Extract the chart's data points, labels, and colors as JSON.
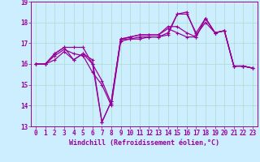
{
  "xlabel": "Windchill (Refroidissement éolien,°C)",
  "background_color": "#cceeff",
  "line_color": "#990099",
  "grid_color": "#aaddcc",
  "xlim": [
    -0.5,
    23.5
  ],
  "ylim": [
    13,
    19
  ],
  "yticks": [
    13,
    14,
    15,
    16,
    17,
    18,
    19
  ],
  "xticks": [
    0,
    1,
    2,
    3,
    4,
    5,
    6,
    7,
    8,
    9,
    10,
    11,
    12,
    13,
    14,
    15,
    16,
    17,
    18,
    19,
    20,
    21,
    22,
    23
  ],
  "series": [
    [
      16.0,
      16.0,
      16.5,
      16.8,
      16.2,
      16.5,
      16.2,
      13.2,
      14.2,
      17.2,
      17.3,
      17.4,
      17.4,
      17.4,
      17.8,
      17.8,
      17.5,
      17.3,
      18.2,
      17.5,
      17.6,
      15.9,
      15.9,
      15.8
    ],
    [
      16.0,
      16.0,
      16.5,
      16.8,
      16.8,
      16.8,
      16.0,
      15.2,
      14.1,
      17.2,
      17.2,
      17.3,
      17.3,
      17.3,
      17.5,
      18.4,
      18.4,
      17.5,
      18.2,
      17.5,
      17.6,
      15.9,
      15.9,
      15.8
    ],
    [
      16.0,
      16.0,
      16.4,
      16.7,
      16.5,
      16.4,
      15.6,
      15.0,
      14.0,
      17.1,
      17.2,
      17.2,
      17.3,
      17.3,
      17.4,
      18.4,
      18.5,
      17.4,
      18.0,
      17.5,
      17.6,
      15.9,
      15.9,
      15.8
    ],
    [
      16.0,
      16.0,
      16.2,
      16.6,
      16.2,
      16.5,
      16.0,
      13.2,
      14.2,
      17.2,
      17.3,
      17.4,
      17.4,
      17.4,
      17.7,
      17.5,
      17.3,
      17.3,
      18.2,
      17.5,
      17.6,
      15.9,
      15.9,
      15.8
    ]
  ],
  "xlabel_fontsize": 6,
  "tick_fontsize": 5.5,
  "xlabel_color": "#990099",
  "tick_color": "#990099",
  "axis_color": "#990099"
}
